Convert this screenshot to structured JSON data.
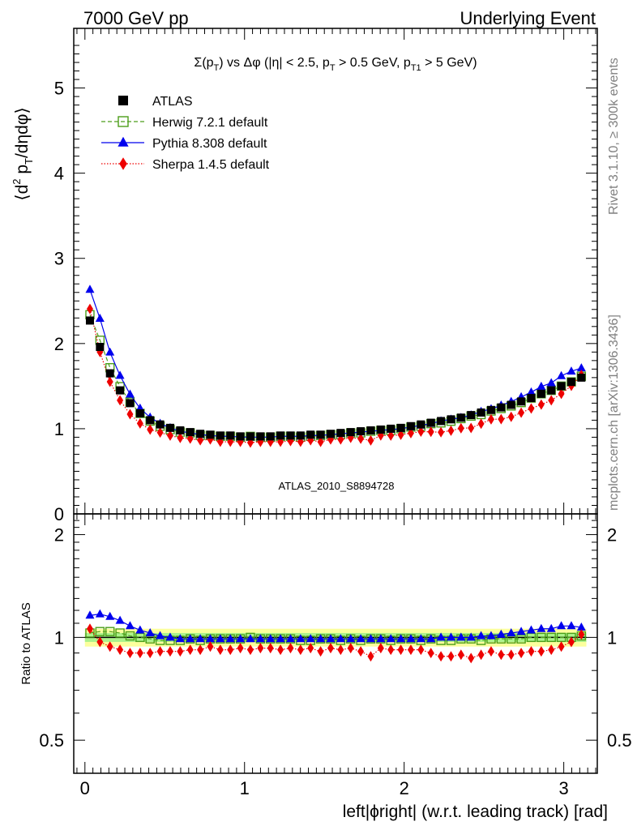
{
  "header": {
    "left": "7000 GeV pp",
    "right": "Underlying Event"
  },
  "side": {
    "rivet": "Rivet 3.1.10, ≥ 300k events",
    "mcplots": "mcplots.cern.ch [arXiv:1306.3436]"
  },
  "chart_data": {
    "type": "scatter",
    "title": "Σ(p_T) vs Δφ (|η| < 2.5, p_T > 0.5 GeV, p_T1 > 5 GeV)",
    "title_parts": [
      "Σ(p",
      "T",
      ") vs Δφ (|η| < 2.5, p",
      "T",
      " > 0.5 GeV, p",
      "T1",
      " > 5 GeV)"
    ],
    "watermark": "ATLAS_2010_S8894728",
    "ylabel_parts": [
      "⟨d",
      "2",
      " p",
      "T",
      "/dηdφ⟩"
    ],
    "ratio_ylabel": "Ratio to ATLAS",
    "xlabel": "left|ϕright| (w.r.t. leading track) [rad]",
    "xlim": [
      -0.07,
      3.21
    ],
    "ylim": [
      0,
      5.7
    ],
    "ratio_ylim": [
      0.4,
      2.3
    ],
    "main_ticks": [
      "0",
      "1",
      "2",
      "3",
      "4",
      "5"
    ],
    "x_ticks": [
      "0",
      "1",
      "2",
      "3"
    ],
    "ratio_ticks": [
      "0.5",
      "1",
      "2"
    ],
    "x": [
      0.0314,
      0.0942,
      0.157,
      0.2199,
      0.2827,
      0.3456,
      0.4084,
      0.4712,
      0.5341,
      0.5969,
      0.6597,
      0.7226,
      0.7854,
      0.8482,
      0.9111,
      0.9739,
      1.0367,
      1.0996,
      1.1624,
      1.2252,
      1.2881,
      1.3509,
      1.4137,
      1.4765,
      1.5394,
      1.6022,
      1.665,
      1.7279,
      1.7907,
      1.8535,
      1.9164,
      1.9792,
      2.042,
      2.1049,
      2.1677,
      2.2305,
      2.2934,
      2.3562,
      2.419,
      2.4819,
      2.5447,
      2.6075,
      2.6704,
      2.7332,
      2.796,
      2.8589,
      2.9217,
      2.9845,
      3.0474,
      3.1102
    ],
    "series": [
      {
        "name": "ATLAS",
        "color": "#000000",
        "marker": "filled-square",
        "y": [
          2.27,
          1.96,
          1.65,
          1.45,
          1.3,
          1.18,
          1.1,
          1.05,
          1.01,
          0.98,
          0.96,
          0.94,
          0.93,
          0.92,
          0.92,
          0.91,
          0.91,
          0.91,
          0.91,
          0.92,
          0.92,
          0.92,
          0.93,
          0.93,
          0.94,
          0.95,
          0.96,
          0.97,
          0.98,
          0.99,
          1.0,
          1.01,
          1.03,
          1.05,
          1.07,
          1.09,
          1.11,
          1.13,
          1.16,
          1.19,
          1.22,
          1.25,
          1.28,
          1.32,
          1.36,
          1.41,
          1.45,
          1.5,
          1.55,
          1.6
        ]
      },
      {
        "name": "Herwig 7.2.1 default",
        "color": "#4c9e1a",
        "marker": "open-square",
        "ratio": [
          1.03,
          1.04,
          1.04,
          1.03,
          1.01,
          1.0,
          0.99,
          0.98,
          0.98,
          0.98,
          0.99,
          0.98,
          0.99,
          0.99,
          0.99,
          0.99,
          1.0,
          0.99,
          0.99,
          0.99,
          0.99,
          0.98,
          0.98,
          0.99,
          0.99,
          0.98,
          0.99,
          0.98,
          0.99,
          0.99,
          0.98,
          0.99,
          0.99,
          0.98,
          0.99,
          0.98,
          0.98,
          0.99,
          0.99,
          0.98,
          0.99,
          0.99,
          0.99,
          0.99,
          1.0,
          1.0,
          1.0,
          1.0,
          1.0,
          1.01
        ]
      },
      {
        "name": "Pythia 8.308 default",
        "color": "#0000ee",
        "marker": "filled-triangle",
        "ratio": [
          1.16,
          1.17,
          1.15,
          1.12,
          1.08,
          1.05,
          1.03,
          1.01,
          1.0,
          0.99,
          0.99,
          0.99,
          0.99,
          0.99,
          0.99,
          0.99,
          0.99,
          0.99,
          0.99,
          0.99,
          0.99,
          0.99,
          0.99,
          0.99,
          0.99,
          0.99,
          0.99,
          0.99,
          0.99,
          0.99,
          0.99,
          0.99,
          0.99,
          0.99,
          0.99,
          1.0,
          1.0,
          1.0,
          1.0,
          1.01,
          1.01,
          1.02,
          1.03,
          1.04,
          1.05,
          1.06,
          1.06,
          1.08,
          1.08,
          1.07
        ]
      },
      {
        "name": "Sherpa 1.4.5 default",
        "color": "#ee0000",
        "marker": "filled-diamond",
        "ratio": [
          1.06,
          0.97,
          0.94,
          0.92,
          0.9,
          0.9,
          0.9,
          0.91,
          0.91,
          0.91,
          0.92,
          0.92,
          0.94,
          0.92,
          0.92,
          0.93,
          0.92,
          0.93,
          0.93,
          0.92,
          0.93,
          0.92,
          0.93,
          0.91,
          0.93,
          0.92,
          0.93,
          0.91,
          0.88,
          0.93,
          0.92,
          0.92,
          0.92,
          0.92,
          0.9,
          0.88,
          0.88,
          0.89,
          0.87,
          0.89,
          0.91,
          0.89,
          0.89,
          0.9,
          0.91,
          0.91,
          0.92,
          0.94,
          0.97,
          1.02
        ]
      }
    ]
  }
}
